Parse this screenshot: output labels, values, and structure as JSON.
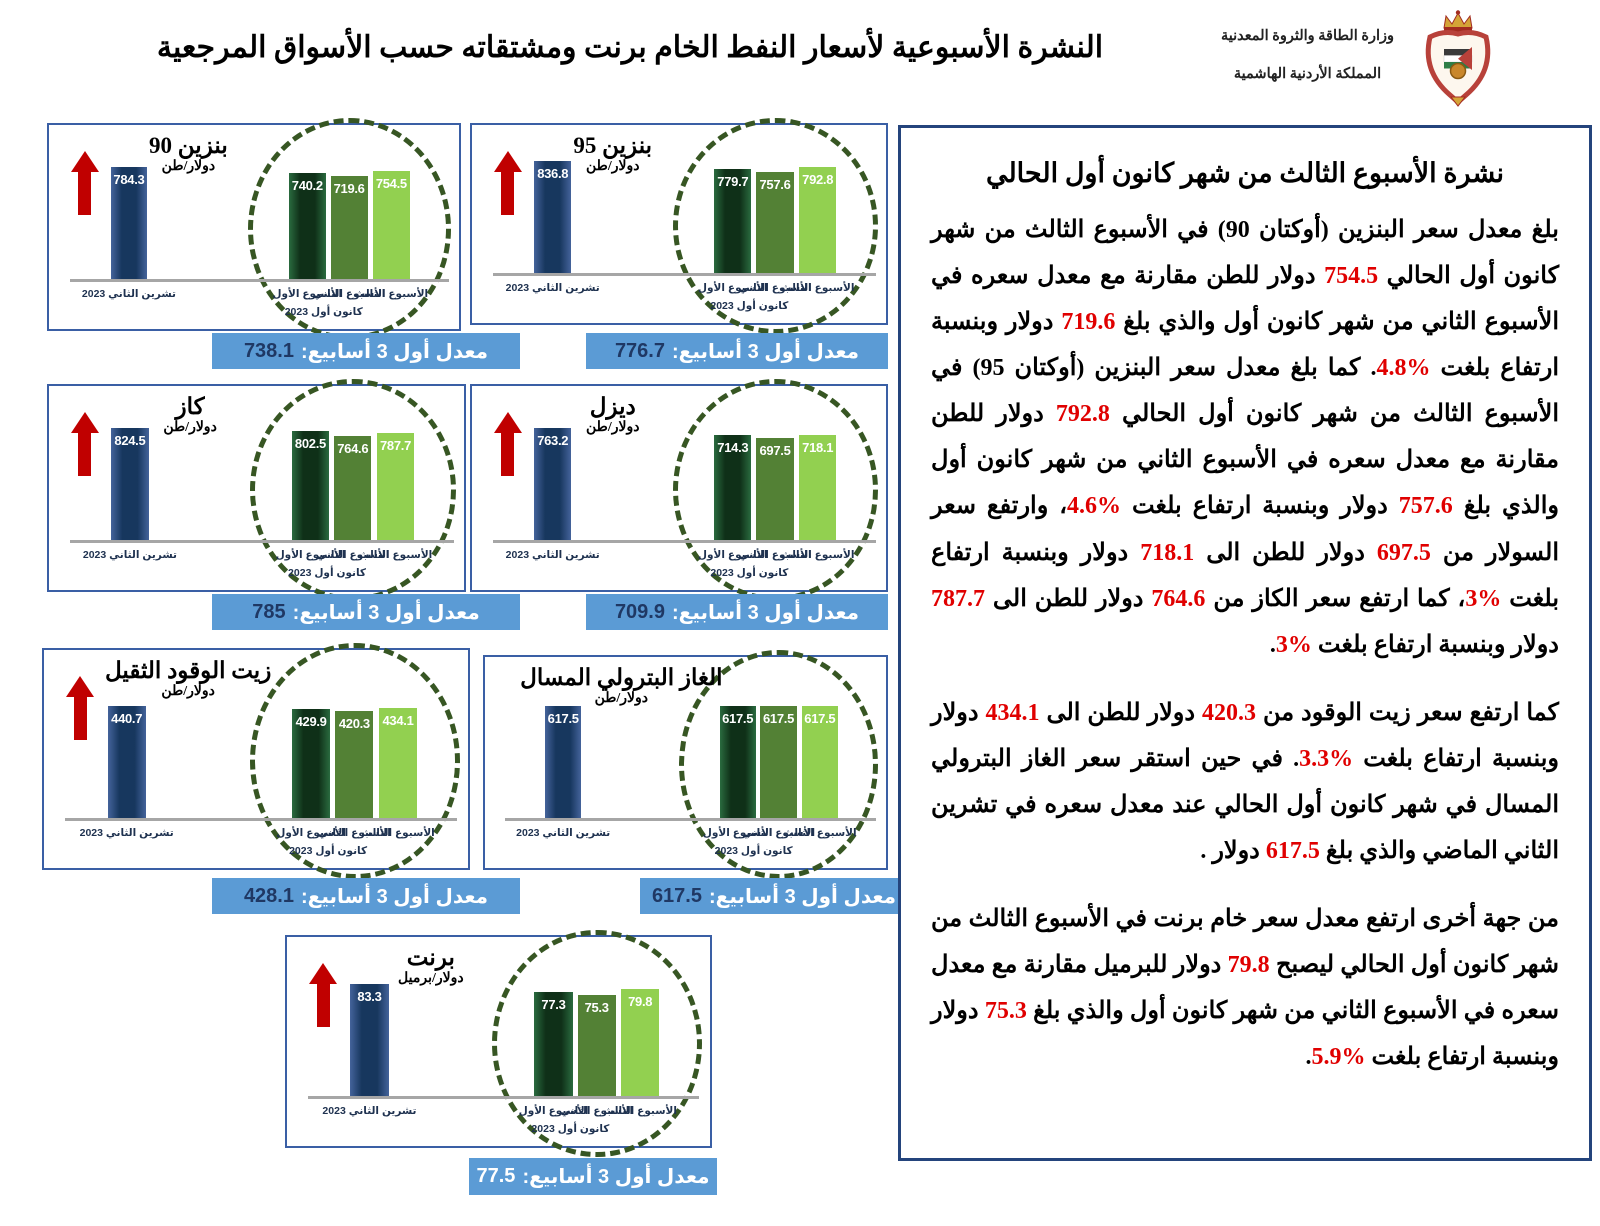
{
  "header": {
    "title": "النشرة الأسبوعية لأسعار النفط الخام برنت ومشتقاته حسب الأسواق المرجعية",
    "ministry_line1": "وزارة الطاقة والثروة المعدنية",
    "ministry_line2": "المملكة الأردنية الهاشمية",
    "crest_icon": "jordan-coat-of-arms"
  },
  "shared": {
    "avg_label": "معدل أول 3 أسابيع:",
    "nov_label": "تشرين الثاني 2023",
    "dec_label": "كانون أول 2023",
    "week_labels": [
      "الأسبوع الأول",
      "الأسبوع الثاني",
      "الأسبوع الثالث"
    ],
    "arrow_icon": "up-arrow-icon"
  },
  "colors": {
    "banner_blue": "#5B9BD5",
    "bar_navy": "#17375E",
    "bar_week1": "#0f3018",
    "bar_week2": "#538135",
    "bar_week3": "#92D050",
    "arrow_red": "#C00000",
    "number_red": "#E00000",
    "ellipse_green": "#375623",
    "panel_border": "#3A5FA5",
    "text_panel_border": "#24447C",
    "avg_navy": "#1F3864"
  },
  "chart_data": [
    {
      "id": "benzene-90",
      "type": "bar",
      "title": "بنزين 90",
      "unit": "دولار/طن",
      "arrow_up": true,
      "categories": [
        "تشرين الثاني 2023",
        "الأسبوع الأول",
        "الأسبوع الثاني",
        "الأسبوع الثالث"
      ],
      "values": [
        784.3,
        740.2,
        719.6,
        754.5
      ],
      "avg": "738.1"
    },
    {
      "id": "benzene-95",
      "type": "bar",
      "title": "بنزين 95",
      "unit": "دولار/طن",
      "arrow_up": true,
      "categories": [
        "تشرين الثاني 2023",
        "الأسبوع الأول",
        "الأسبوع الثاني",
        "الأسبوع الثالث"
      ],
      "values": [
        836.8,
        779.7,
        757.6,
        792.8
      ],
      "avg": "776.7"
    },
    {
      "id": "kerosene",
      "type": "bar",
      "title": "كاز",
      "unit": "دولار/طن",
      "arrow_up": true,
      "categories": [
        "تشرين الثاني 2023",
        "الأسبوع الأول",
        "الأسبوع الثاني",
        "الأسبوع الثالث"
      ],
      "values": [
        824.5,
        802.5,
        764.6,
        787.7
      ],
      "avg": "785"
    },
    {
      "id": "diesel",
      "type": "bar",
      "title": "ديزل",
      "unit": "دولار/طن",
      "arrow_up": true,
      "categories": [
        "تشرين الثاني 2023",
        "الأسبوع الأول",
        "الأسبوع الثاني",
        "الأسبوع الثالث"
      ],
      "values": [
        763.2,
        714.3,
        697.5,
        718.1
      ],
      "avg": "709.9"
    },
    {
      "id": "heavy-fuel-oil",
      "type": "bar",
      "title": "زيت الوقود الثقيل",
      "unit": "دولار/طن",
      "arrow_up": true,
      "categories": [
        "تشرين الثاني 2023",
        "الأسبوع الأول",
        "الأسبوع الثاني",
        "الأسبوع الثالث"
      ],
      "values": [
        440.7,
        429.9,
        420.3,
        434.1
      ],
      "avg": "428.1"
    },
    {
      "id": "lpg",
      "type": "bar",
      "title": "الغاز البترولي المسال",
      "unit": "دولار/طن",
      "arrow_up": false,
      "categories": [
        "تشرين الثاني 2023",
        "الأسبوع الأول",
        "الأسبوع الثاني",
        "الأسبوع الثالث"
      ],
      "values": [
        617.5,
        617.5,
        617.5,
        617.5
      ],
      "avg": "617.5"
    },
    {
      "id": "brent",
      "type": "bar",
      "title": "برنت",
      "unit": "دولار/برميل",
      "arrow_up": true,
      "categories": [
        "تشرين الثاني 2023",
        "الأسبوع الأول",
        "الأسبوع الثاني",
        "الأسبوع الثالث"
      ],
      "values": [
        83.3,
        77.3,
        75.3,
        79.8
      ],
      "avg": "77.5",
      "avg_color": "#FFFFFF"
    }
  ],
  "panel": {
    "heading": "نشرة الأسبوع الثالث من شهر كانون أول الحالي",
    "paragraphs": [
      [
        {
          "t": "بلغ معدل سعر البنزين (أوكتان 90) في الأسبوع الثالث من شهر كانون أول الحالي "
        },
        {
          "t": "754.5",
          "red": true
        },
        {
          "t": " دولار  للطن مقارنة مع معدل سعره في الأسبوع الثاني من شهر كانون أول والذي بلغ "
        },
        {
          "t": "719.6",
          "red": true
        },
        {
          "t": " دولار  وبنسبة ارتفاع بلغت "
        },
        {
          "t": "%4.8",
          "red": true
        },
        {
          "t": ". كما بلغ معدل سعر البنزين (أوكتان 95) في الأسبوع الثالث من شهر كانون أول  الحالي "
        },
        {
          "t": "792.8",
          "red": true
        },
        {
          "t": " دولار  للطن مقارنة مع معدل سعره في الأسبوع الثاني من شهر كانون أول  والذي بلغ "
        },
        {
          "t": "757.6",
          "red": true
        },
        {
          "t": " دولار  وبنسبة ارتفاع بلغت "
        },
        {
          "t": "%4.6",
          "red": true
        },
        {
          "t": "، وارتفع سعر السولار من "
        },
        {
          "t": "697.5",
          "red": true
        },
        {
          "t": " دولار  للطن الى "
        },
        {
          "t": "718.1",
          "red": true
        },
        {
          "t": " دولار  وبنسبة ارتفاع بلغت "
        },
        {
          "t": "%3",
          "red": true
        },
        {
          "t": "، كما ارتفع سعر الكاز من "
        },
        {
          "t": "764.6",
          "red": true
        },
        {
          "t": " دولار  للطن الى "
        },
        {
          "t": "787.7",
          "red": true
        },
        {
          "t": " دولار  وبنسبة ارتفاع بلغت "
        },
        {
          "t": "%3",
          "red": true
        },
        {
          "t": "."
        }
      ],
      [
        {
          "t": "كما ارتفع سعر زيت الوقود من "
        },
        {
          "t": "420.3",
          "red": true
        },
        {
          "t": " دولار  للطن الى "
        },
        {
          "t": "434.1",
          "red": true
        },
        {
          "t": " دولار  وبنسبة ارتفاع بلغت "
        },
        {
          "t": "%3.3",
          "red": true
        },
        {
          "t": ". في حين استقر سعر الغاز البترولي المسال في شهر كانون أول الحالي عند معدل سعره في تشرين الثاني الماضي والذي بلغ "
        },
        {
          "t": "617.5",
          "red": true
        },
        {
          "t": " دولار ."
        }
      ],
      [
        {
          "t": "من جهة أخرى ارتفع معدل سعر خام برنت في الأسبوع الثالث من شهر كانون أول الحالي ليصبح "
        },
        {
          "t": "79.8",
          "red": true
        },
        {
          "t": " دولار  للبرميل مقارنة مع معدل سعره في الأسبوع الثاني من شهر كانون أول والذي بلغ "
        },
        {
          "t": "75.3",
          "red": true
        },
        {
          "t": " دولار  وبنسبة ارتفاع بلغت "
        },
        {
          "t": "%5.9",
          "red": true
        },
        {
          "t": "."
        }
      ]
    ]
  }
}
